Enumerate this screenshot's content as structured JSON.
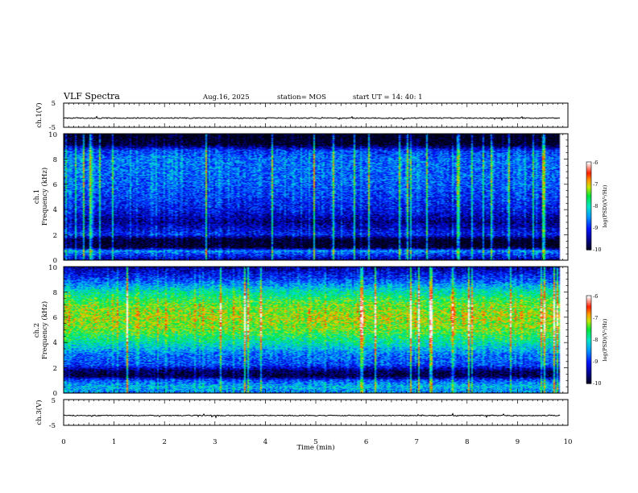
{
  "header": {
    "title": "VLF Spectra",
    "date": "Aug.16, 2025",
    "station": "station= MOS",
    "start": "start  UT  =   14: 40: 1"
  },
  "chart_data": [
    {
      "type": "line",
      "name": "ch1-waveform",
      "ylabel": "ch.1(V)",
      "ylim": [
        -5,
        5
      ],
      "yticks": [
        "5",
        "-5"
      ],
      "xlim": [
        0,
        10
      ],
      "baseline": -1.2,
      "x_end": 9.85
    },
    {
      "type": "heatmap",
      "name": "ch1-spectrogram",
      "ylabel": [
        "ch.1",
        "Frequency  (kHz)"
      ],
      "ylim": [
        0,
        10
      ],
      "yticks": [
        "0",
        "2",
        "4",
        "6",
        "8",
        "10"
      ],
      "xlim": [
        0,
        10
      ],
      "x_end": 9.85,
      "colorbar": {
        "label": "log(PSD)(V²/Hz)",
        "range": [
          -10,
          -6
        ],
        "ticks": [
          "-6",
          "-7",
          "-8",
          "-9",
          "-10"
        ]
      },
      "profile_khz_to_logpsd": [
        [
          0,
          -9.3
        ],
        [
          0.5,
          -8.6
        ],
        [
          0.7,
          -8.2
        ],
        [
          1.0,
          -9.9
        ],
        [
          1.6,
          -9.9
        ],
        [
          2.0,
          -8.8
        ],
        [
          3.0,
          -9.4
        ],
        [
          4.0,
          -8.9
        ],
        [
          6.0,
          -8.5
        ],
        [
          8.0,
          -8.4
        ],
        [
          8.7,
          -8.7
        ],
        [
          9.2,
          -9.9
        ],
        [
          10.0,
          -10
        ]
      ]
    },
    {
      "type": "heatmap",
      "name": "ch2-spectrogram",
      "ylabel": [
        "ch.2",
        "Frequency  (kHz)"
      ],
      "ylim": [
        0,
        10
      ],
      "yticks": [
        "0",
        "2",
        "4",
        "6",
        "8",
        "10"
      ],
      "xlim": [
        0,
        10
      ],
      "x_end": 9.85,
      "colorbar": {
        "label": "log(PSD)(V²/Hz)",
        "range": [
          -10,
          -6
        ],
        "ticks": [
          "-6",
          "-7",
          "-8",
          "-9",
          "-10"
        ]
      },
      "profile_khz_to_logpsd": [
        [
          0,
          -8.3
        ],
        [
          0.5,
          -8.0
        ],
        [
          1.0,
          -8.6
        ],
        [
          1.3,
          -9.7
        ],
        [
          1.7,
          -9.6
        ],
        [
          2.2,
          -8.6
        ],
        [
          3.0,
          -8.4
        ],
        [
          4.0,
          -7.6
        ],
        [
          5.0,
          -7.0
        ],
        [
          6.0,
          -6.8
        ],
        [
          7.0,
          -7.0
        ],
        [
          8.0,
          -7.6
        ],
        [
          9.0,
          -8.6
        ],
        [
          10.0,
          -9.3
        ]
      ]
    },
    {
      "type": "line",
      "name": "ch3-waveform",
      "ylabel": "ch.3(V)",
      "ylim": [
        -5,
        5
      ],
      "yticks": [
        "5",
        "-5"
      ],
      "xlim": [
        0,
        10
      ],
      "baseline": -1.2,
      "x_end": 9.85,
      "xlabel": "Time  (min)",
      "xticks": [
        "0",
        "1",
        "2",
        "3",
        "4",
        "5",
        "6",
        "7",
        "8",
        "9",
        "10"
      ]
    }
  ]
}
